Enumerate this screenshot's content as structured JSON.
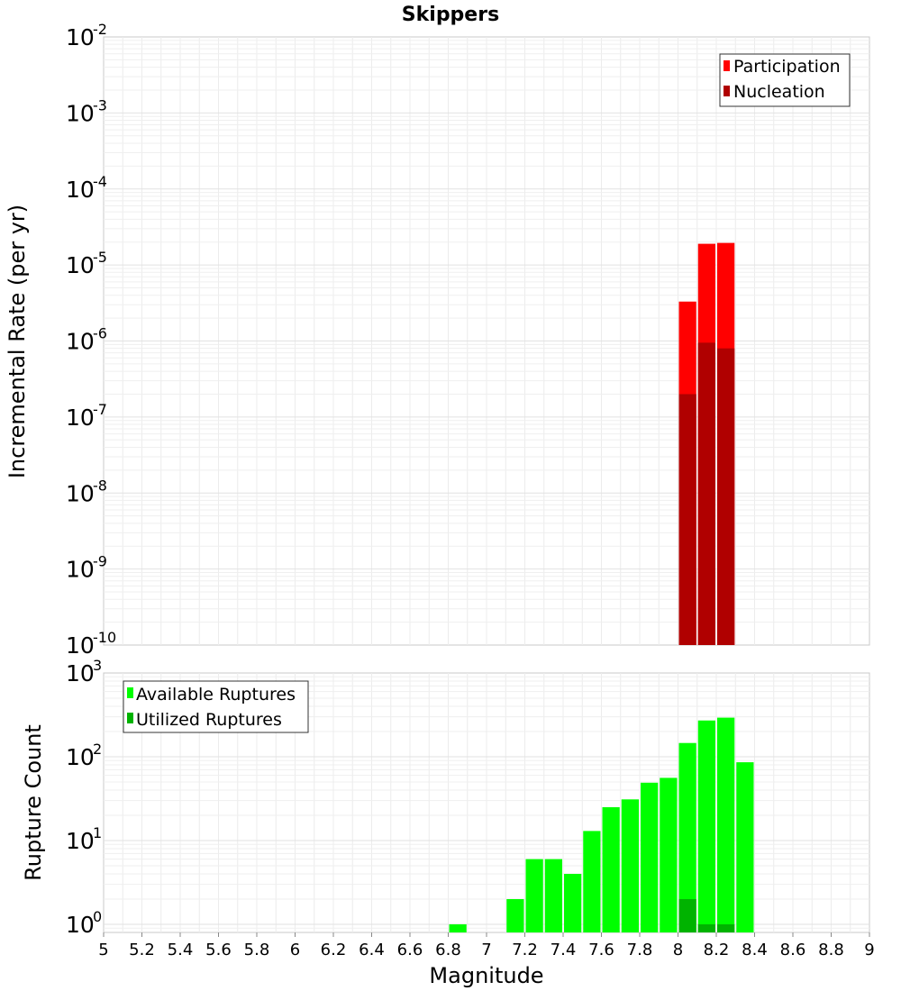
{
  "chart_data": [
    {
      "type": "bar",
      "title": "Skippers",
      "xlabel": "",
      "ylabel": "Incremental Rate (per yr)",
      "y_scale": "log",
      "ylim": [
        1e-10,
        0.01
      ],
      "y_tick_exponents": [
        -10,
        -9,
        -8,
        -7,
        -6,
        -5,
        -4,
        -3,
        -2
      ],
      "xlim": [
        5,
        9
      ],
      "bin_width": 0.1,
      "grid": true,
      "legend_position": "top-right",
      "series": [
        {
          "name": "Participation",
          "color": "#ff0000",
          "x": [
            8.05,
            8.15,
            8.25
          ],
          "values": [
            3.3e-06,
            1.9e-05,
            1.95e-05
          ]
        },
        {
          "name": "Nucleation",
          "color": "#b00000",
          "x": [
            8.05,
            8.15,
            8.25
          ],
          "values": [
            2e-07,
            9.5e-07,
            8e-07
          ]
        }
      ]
    },
    {
      "type": "bar",
      "title": "",
      "xlabel": "Magnitude",
      "ylabel": "Rupture Count",
      "y_scale": "log",
      "ylim": [
        0.8,
        1000
      ],
      "y_tick_exponents": [
        0,
        1,
        2,
        3
      ],
      "xlim": [
        5,
        9
      ],
      "x_ticks": [
        "5",
        "5.2",
        "5.4",
        "5.6",
        "5.8",
        "6",
        "6.2",
        "6.4",
        "6.6",
        "6.8",
        "7",
        "7.2",
        "7.4",
        "7.6",
        "7.8",
        "8",
        "8.2",
        "8.4",
        "8.6",
        "8.8",
        "9"
      ],
      "bin_width": 0.1,
      "grid": true,
      "legend_position": "top-left",
      "series": [
        {
          "name": "Available Ruptures",
          "color": "#00ff00",
          "x": [
            6.85,
            7.15,
            7.25,
            7.35,
            7.45,
            7.55,
            7.65,
            7.75,
            7.85,
            7.95,
            8.05,
            8.15,
            8.25,
            8.35
          ],
          "values": [
            1,
            2,
            6,
            6,
            4,
            13,
            25,
            31,
            49,
            56,
            146,
            271,
            293,
            86
          ]
        },
        {
          "name": "Utilized Ruptures",
          "color": "#00b300",
          "x": [
            8.05,
            8.15,
            8.25
          ],
          "values": [
            2,
            1,
            1
          ]
        }
      ]
    }
  ]
}
